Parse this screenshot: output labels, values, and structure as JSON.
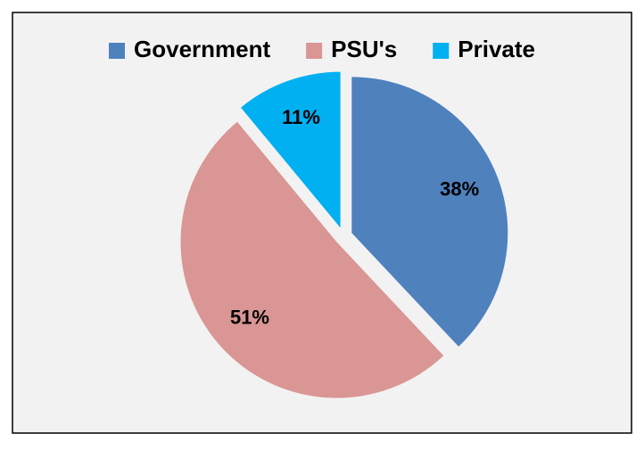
{
  "chart_data": {
    "type": "pie",
    "categories": [
      "Government",
      "PSU's",
      "Private"
    ],
    "values": [
      38,
      51,
      11
    ],
    "value_labels": [
      "38%",
      "51%",
      "11%"
    ],
    "colors": [
      "#4f81bd",
      "#d99694",
      "#00b0f0"
    ],
    "legend": "top",
    "start_angle": 0,
    "direction": "clockwise",
    "exploded": true
  }
}
